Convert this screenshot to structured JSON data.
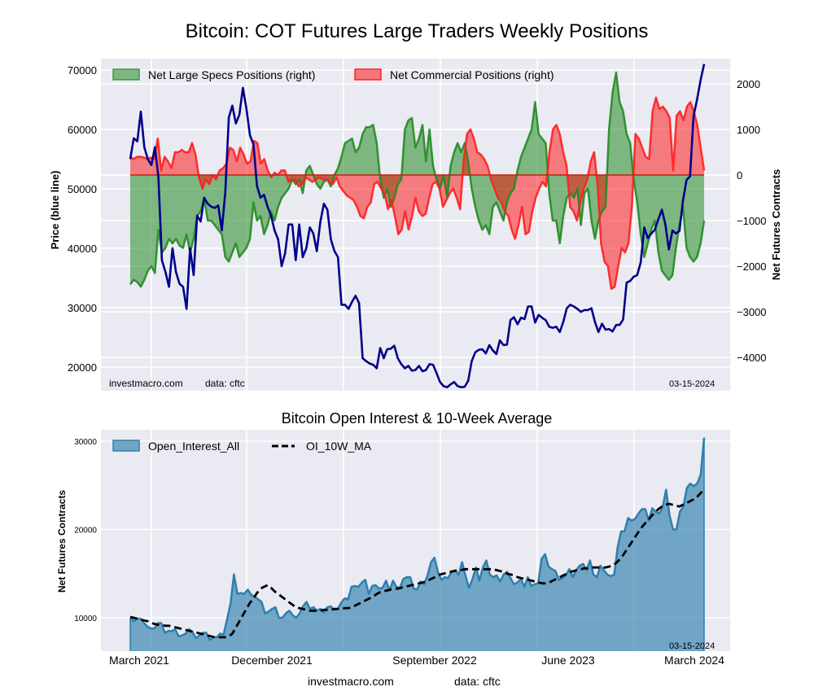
{
  "chart_data": [
    {
      "type": "line",
      "title": "Bitcoin: COT Futures Large Traders Weekly Positions",
      "ylabel": "Price (blue line)",
      "ylabel_right": "Net Futures Contracts",
      "ylim": [
        16000,
        72000
      ],
      "ylim_right": [
        -4700,
        2500
      ],
      "yticks": [
        20000,
        30000,
        40000,
        50000,
        60000,
        70000
      ],
      "yticks_right": [
        -4000,
        -3000,
        -2000,
        -1000,
        0,
        1000,
        2000
      ],
      "grid": true,
      "legend_position": "top-left",
      "legend": [
        "Net Large Specs Positions (right)",
        "Net Commercial Positions (right)"
      ],
      "annotations": {
        "source": "investmacro.com",
        "data": "data: cftc",
        "date": "03-15-2024"
      },
      "x_start": "2021-02-19",
      "x_end": "2024-03-15",
      "frequency": "weekly",
      "series": [
        {
          "name": "Price",
          "axis": "left",
          "color": "#00008b",
          "values": [
            55000,
            58500,
            58000,
            63000,
            57000,
            55000,
            54000,
            57000,
            52000,
            38000,
            36000,
            33500,
            40000,
            36000,
            34000,
            33500,
            29800,
            40000,
            35500,
            45500,
            44500,
            48500,
            47500,
            47000,
            46800,
            47200,
            43000,
            49500,
            62000,
            64000,
            61000,
            62500,
            67000,
            63500,
            59000,
            57500,
            50500,
            48500,
            49000,
            47000,
            45500,
            43000,
            41500,
            37000,
            39200,
            44000,
            44000,
            38000,
            44000,
            38500,
            40000,
            43500,
            42500,
            39500,
            44500,
            47500,
            46500,
            41500,
            39500,
            38500,
            30500,
            30500,
            29800,
            31000,
            32000,
            30800,
            21500,
            21000,
            20600,
            20400,
            19800,
            23200,
            21500,
            23000,
            23100,
            23600,
            21500,
            20500,
            19800,
            20200,
            19400,
            19500,
            20200,
            19300,
            19500,
            20500,
            20400,
            19000,
            17500,
            16800,
            16600,
            17100,
            17500,
            16800,
            16600,
            16700,
            17700,
            21000,
            22500,
            22900,
            23000,
            22300,
            23700,
            22800,
            22200,
            24500,
            23700,
            23800,
            27900,
            28400,
            27200,
            28300,
            28100,
            30200,
            30200,
            27500,
            28800,
            28300,
            27900,
            26800,
            26600,
            26800,
            25900,
            27600,
            29900,
            30500,
            30200,
            29800,
            29300,
            29600,
            29600,
            29900,
            27600,
            25900,
            27300,
            26300,
            26400,
            26000,
            27100,
            27100,
            28000,
            34200,
            34500,
            35200,
            35500,
            37600,
            43500,
            41700,
            42500,
            43100,
            44900,
            46500,
            44000,
            39800,
            43000,
            42500,
            42900,
            48000,
            51500,
            52100,
            62200,
            65000,
            68300,
            71000
          ]
        },
        {
          "name": "Net Large Specs Positions (right)",
          "axis": "right",
          "color": "#228b22",
          "values": [
            -2400,
            -2300,
            -2350,
            -2450,
            -2300,
            -2100,
            -2000,
            -2150,
            -1200,
            -1700,
            -1600,
            -1400,
            -1500,
            -1400,
            -1550,
            -1600,
            -1300,
            -1700,
            -1400,
            -900,
            -800,
            -500,
            -1000,
            -1000,
            -1100,
            -1200,
            -1300,
            -1800,
            -1900,
            -1700,
            -1500,
            -1800,
            -1700,
            -1600,
            -1400,
            -600,
            -1000,
            -900,
            -1300,
            -1100,
            -800,
            -1000,
            -700,
            -500,
            -400,
            -300,
            -100,
            -200,
            -100,
            -400,
            100,
            200,
            0,
            -200,
            -300,
            -150,
            -100,
            -250,
            0,
            150,
            400,
            700,
            750,
            800,
            500,
            600,
            900,
            1050,
            1050,
            1100,
            700,
            -100,
            -500,
            -300,
            -700,
            -500,
            -200,
            -100,
            1000,
            1200,
            1250,
            600,
            800,
            1100,
            300,
            1000,
            200,
            -100,
            -300,
            0,
            -500,
            200,
            500,
            700,
            500,
            700,
            300,
            -300,
            -700,
            -1000,
            -1200,
            -1100,
            -1300,
            -700,
            -600,
            -800,
            -1000,
            -600,
            -400,
            -300,
            100,
            400,
            600,
            800,
            1000,
            1600,
            900,
            800,
            700,
            -400,
            -1000,
            -1000,
            -1500,
            -900,
            -500,
            -400,
            -500,
            -300,
            -1100,
            -400,
            -300,
            -1000,
            -1400,
            -1000,
            -800,
            -700,
            1000,
            1800,
            2250,
            1600,
            1400,
            900,
            700,
            -100,
            -600,
            -1300,
            -1800,
            -1500,
            -1200,
            -1000,
            -1700,
            -2100,
            -2200,
            -2300,
            -2200,
            -1600,
            -1100,
            -700,
            -1600,
            -1800,
            -1900,
            -1800,
            -1500,
            -1000
          ]
        },
        {
          "name": "Net Commercial Positions (right)",
          "axis": "right",
          "color": "#ff0000",
          "values": [
            400,
            350,
            400,
            400,
            380,
            350,
            380,
            350,
            800,
            100,
            400,
            300,
            150,
            500,
            500,
            550,
            500,
            500,
            700,
            450,
            -50,
            -300,
            -100,
            -200,
            0,
            -100,
            100,
            150,
            250,
            600,
            550,
            300,
            600,
            450,
            250,
            300,
            750,
            700,
            250,
            350,
            100,
            -50,
            50,
            0,
            100,
            100,
            -150,
            -100,
            -100,
            -250,
            -200,
            -50,
            -100,
            -150,
            -100,
            -50,
            -100,
            -100,
            -150,
            -200,
            -50,
            -250,
            -350,
            -450,
            -500,
            -550,
            -700,
            -900,
            -950,
            -700,
            -600,
            -200,
            -150,
            -300,
            -400,
            -750,
            -550,
            -900,
            -1300,
            -1200,
            -800,
            -1200,
            -900,
            -500,
            -800,
            -900,
            -850,
            -500,
            -200,
            -150,
            -300,
            -700,
            -550,
            -400,
            -300,
            -500,
            -750,
            300,
            900,
            1000,
            800,
            500,
            450,
            350,
            200,
            -100,
            -300,
            -500,
            -600,
            -800,
            -900,
            -1200,
            -1400,
            -1100,
            -700,
            -1300,
            -1250,
            -800,
            -500,
            -300,
            -150,
            -250,
            500,
            1000,
            1100,
            900,
            500,
            200,
            -700,
            -800,
            -1000,
            -600,
            -300,
            -100,
            300,
            500,
            -200,
            -1500,
            -1900,
            -2000,
            -2500,
            -2450,
            -2000,
            -1600,
            -1700,
            -1500,
            -700,
            900,
            800,
            600,
            400,
            350,
            1400,
            1700,
            1450,
            1500,
            1400,
            1250,
            100,
            1300,
            1400,
            1200,
            1500,
            1600,
            1400,
            1100,
            600,
            100
          ]
        }
      ]
    },
    {
      "type": "area",
      "title": "Bitcoin Open Interest & 10-Week Average",
      "ylabel": "Net Futures Contracts",
      "xlabel_left": "investmacro.com",
      "xlabel_right": "data: cftc",
      "ylim": [
        6200,
        31700
      ],
      "yticks": [
        10000,
        20000,
        30000
      ],
      "xtick_labels": [
        "March 2021",
        "December 2021",
        "September 2022",
        "June 2023",
        "March 2024"
      ],
      "grid": true,
      "legend_position": "top-left",
      "legend": [
        "Open_Interest_All",
        "OI_10W_MA"
      ],
      "annotations": {
        "date": "03-15-2024"
      },
      "series": [
        {
          "name": "Open_Interest_All",
          "color": "#2e7fad",
          "values": [
            10000,
            9600,
            9900,
            9900,
            9400,
            9000,
            8800,
            8800,
            9400,
            9400,
            8300,
            8500,
            8500,
            8700,
            7900,
            8000,
            8200,
            8700,
            8400,
            7700,
            8000,
            8300,
            8300,
            7500,
            7800,
            7800,
            8200,
            8100,
            9800,
            11600,
            14900,
            12700,
            12800,
            12700,
            13200,
            12600,
            12400,
            12100,
            11800,
            10500,
            10700,
            11000,
            11200,
            10000,
            10000,
            10500,
            10800,
            10300,
            10000,
            10500,
            11300,
            11800,
            11000,
            11200,
            10800,
            11000,
            10600,
            11200,
            11300,
            10900,
            11000,
            11700,
            12200,
            12100,
            13500,
            13600,
            13500,
            14000,
            14300,
            12700,
            13600,
            13700,
            13300,
            13400,
            14200,
            13100,
            14200,
            13500,
            13400,
            14400,
            14600,
            14600,
            13300,
            13200,
            14100,
            13800,
            14800,
            16300,
            16800,
            15200,
            14300,
            14600,
            14500,
            15300,
            15300,
            14900,
            16300,
            14700,
            13400,
            14400,
            15700,
            14200,
            15700,
            16500,
            14900,
            14600,
            14800,
            14100,
            14900,
            15200,
            14500,
            13800,
            14000,
            14400,
            13500,
            14600,
            13600,
            13800,
            13900,
            16700,
            17200,
            15800,
            15500,
            15300,
            14300,
            14500,
            14800,
            15500,
            14600,
            15400,
            15900,
            16100,
            15400,
            16500,
            14900,
            14600,
            15900,
            15400,
            14900,
            14700,
            14900,
            18000,
            19800,
            19800,
            21300,
            21000,
            21200,
            21800,
            22300,
            22300,
            21000,
            22400,
            22000,
            21800,
            22500,
            24500,
            21600,
            20000,
            20000,
            22000,
            22600,
            24700,
            25200,
            24900,
            25200,
            26200,
            30400
          ]
        },
        {
          "name": "OI_10W_MA",
          "color": "#000000",
          "values": [
            10100,
            10000,
            9900,
            9800,
            9700,
            9600,
            9400,
            9300,
            9200,
            9200,
            9100,
            9100,
            9000,
            8900,
            8800,
            8700,
            8600,
            8500,
            8400,
            8300,
            8200,
            8100,
            8000,
            7900,
            7800,
            7800,
            7800,
            7800,
            7900,
            8200,
            8900,
            9600,
            10300,
            11000,
            11700,
            12200,
            12800,
            13300,
            13500,
            13700,
            13400,
            13000,
            12700,
            12400,
            12100,
            11800,
            11500,
            11200,
            11100,
            11000,
            10900,
            10800,
            10800,
            10800,
            10800,
            10900,
            10900,
            10900,
            11000,
            11000,
            11000,
            11100,
            11100,
            11200,
            11400,
            11600,
            11800,
            12000,
            12200,
            12400,
            12700,
            12900,
            13000,
            13100,
            13200,
            13300,
            13300,
            13400,
            13500,
            13600,
            13700,
            13800,
            13900,
            14000,
            14100,
            14300,
            14500,
            14700,
            14900,
            15000,
            15100,
            15200,
            15300,
            15400,
            15400,
            15500,
            15500,
            15500,
            15500,
            15500,
            15500,
            15500,
            15500,
            15500,
            15400,
            15300,
            15200,
            15000,
            14900,
            14800,
            14600,
            14500,
            14400,
            14300,
            14200,
            14100,
            14000,
            13900,
            13900,
            14000,
            14200,
            14400,
            14600,
            14800,
            15000,
            15200,
            15300,
            15400,
            15500,
            15600,
            15600,
            15700,
            15700,
            15700,
            15700,
            15700,
            15800,
            15900,
            16200,
            16600,
            17100,
            17700,
            18300,
            18900,
            19500,
            20100,
            20600,
            21000,
            21500,
            21900,
            22300,
            22600,
            22800,
            22900,
            22800,
            22700,
            22600,
            22800,
            23000,
            23200,
            23400,
            23700,
            24100,
            24600
          ]
        }
      ]
    }
  ]
}
